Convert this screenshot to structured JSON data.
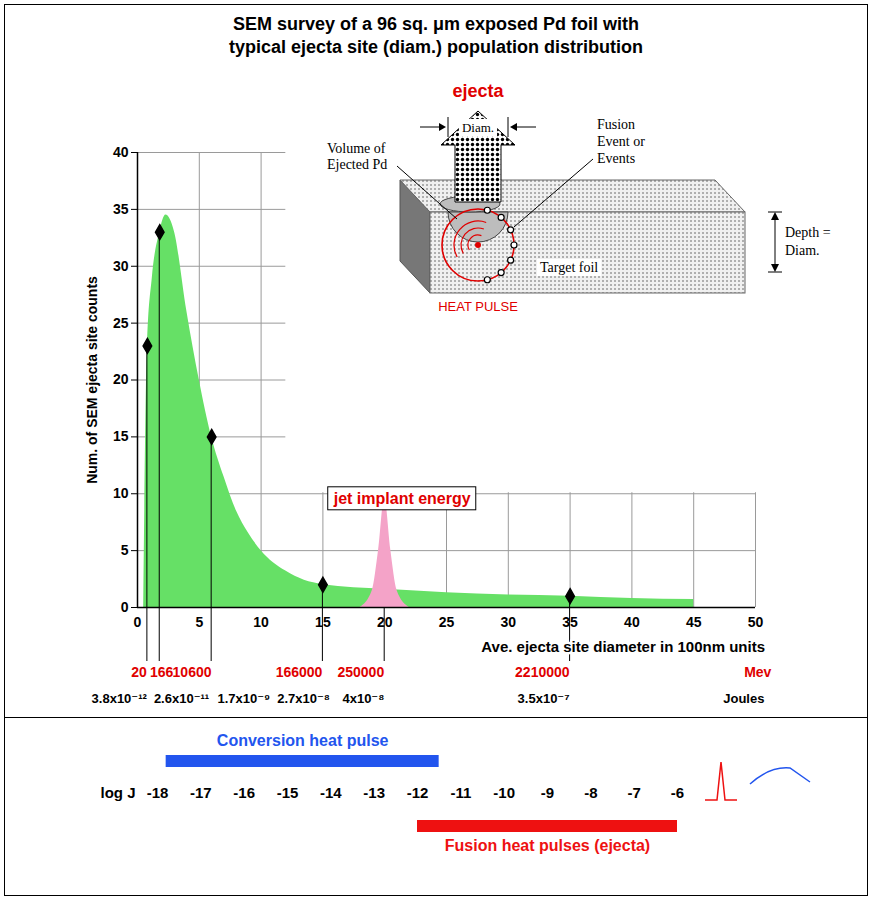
{
  "chart_data": {
    "type": "area",
    "title": "SEM survey of a 96 sq. μm exposed Pd foil with typical ejecta site (diam.) population distribution",
    "x_label": "Ave. ejecta site diameter in 100nm units",
    "y_label": "Num. of SEM ejecta site counts",
    "xlim": [
      0,
      50
    ],
    "xticks": [
      0,
      5,
      10,
      15,
      20,
      25,
      30,
      35,
      40,
      45,
      50
    ],
    "ylim": [
      0,
      40
    ],
    "yticks": [
      0,
      5,
      10,
      15,
      20,
      25,
      30,
      35,
      40
    ],
    "grid": true,
    "series": [
      {
        "color": "#66e066",
        "x": [
          0.5,
          0.8,
          1.2,
          1.8,
          2.3,
          3,
          4,
          5,
          6,
          7,
          8,
          9,
          10,
          12,
          15,
          20,
          25,
          30,
          35,
          40,
          45
        ],
        "values": [
          0,
          23,
          29,
          33,
          34.5,
          33,
          26,
          20,
          15,
          11.5,
          8.5,
          6.5,
          5,
          3.2,
          2,
          1.6,
          1.3,
          1.1,
          1,
          0.8,
          0.7
        ]
      },
      {
        "name": "jet implant energy",
        "color": "#f4a3c8",
        "x": [
          18,
          19,
          19.5,
          20,
          20.5,
          21,
          22
        ],
        "values": [
          0,
          1.5,
          5,
          9.6,
          5,
          1.5,
          0
        ]
      }
    ],
    "points": {
      "marker": "diamond",
      "color": "#000000",
      "x": [
        0.8,
        1.8,
        6,
        15,
        35
      ],
      "values": [
        23,
        33,
        15,
        2,
        1
      ]
    },
    "energy_labels": {
      "x": [
        0.8,
        1.8,
        6,
        15,
        20,
        35
      ],
      "mev": [
        20,
        166,
        10600,
        166000,
        250000,
        2210000
      ],
      "mev_unit": "Mev",
      "joules": [
        {
          "value": 3.8e-12,
          "label": "3.8x10⁻¹²"
        },
        {
          "value": 2.6e-11,
          "label": "2.6x10⁻¹¹"
        },
        {
          "value": 1.7e-09,
          "label": "1.7x10⁻⁹"
        },
        {
          "value": 2.7e-08,
          "label": "2.7x10⁻⁸"
        },
        {
          "value": 4e-08,
          "label": "4x10⁻⁸"
        },
        {
          "value": 3.5e-07,
          "label": "3.5x10⁻⁷"
        }
      ],
      "joules_unit": "Joules"
    },
    "energy_scale": {
      "axis_label": "log J",
      "xlim": [
        -18,
        -6
      ],
      "xticks": [
        -18,
        -17,
        -16,
        -15,
        -14,
        -13,
        -12,
        -11,
        -10,
        -9,
        -8,
        -7,
        -6
      ],
      "bars": [
        {
          "name": "Conversion heat pulse",
          "color": "#2255ee",
          "x1": -17.8,
          "x2": -11.5
        },
        {
          "name": "Fusion heat pulses (ejecta)",
          "color": "#ee1111",
          "x1": -12,
          "x2": -6
        }
      ]
    },
    "diagram": {
      "ejecta": "ejecta",
      "diameter": "Diam.",
      "volume": "Volume of Ejected Pd",
      "fusion": "Fusion Event or Events",
      "depth": "Depth = Diam.",
      "target": "Target foil",
      "heat_pulse": "HEAT PULSE"
    }
  }
}
